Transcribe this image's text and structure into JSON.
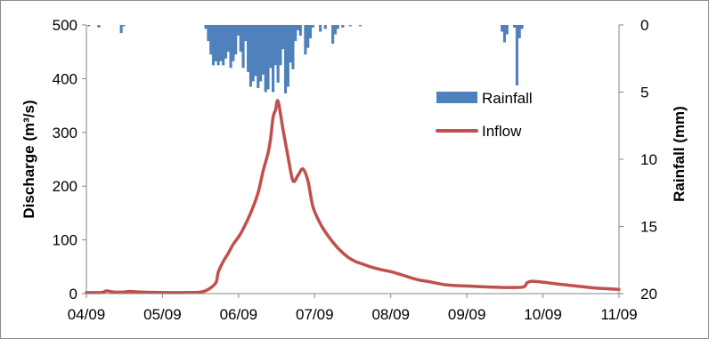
{
  "chart_data": {
    "type": "line",
    "title": "",
    "xlabel": "",
    "ylabel": "Discharge (m³/s)",
    "ylabel_right": "Rainfall (mm)",
    "ylim": [
      0,
      500
    ],
    "ylim_right": [
      0,
      20
    ],
    "right_axis_inverted": true,
    "grid": false,
    "legend_position": "right, inside plot",
    "x_ticks": [
      "04/09",
      "05/09",
      "06/09",
      "07/09",
      "08/09",
      "09/09",
      "10/09",
      "11/09"
    ],
    "y_ticks": [
      "0",
      "100",
      "200",
      "300",
      "400",
      "500"
    ],
    "y_ticks_right": [
      "0",
      "5",
      "10",
      "15",
      "20"
    ],
    "series": [
      {
        "name": "Rainfall",
        "kind": "bar",
        "axis": "right",
        "color": "#4f81bd",
        "x": [
          "04/10",
          "04/14",
          "04/23",
          "04/24",
          "05/27",
          "05/28",
          "05/29",
          "05/30",
          "05/31",
          "06/01",
          "06/02",
          "06/03",
          "06/04",
          "06/05",
          "06/06",
          "06/07",
          "06/08",
          "06/09",
          "06/10",
          "06/11",
          "06/12",
          "06/13",
          "06/14",
          "06/15",
          "06/16",
          "06/17",
          "06/18",
          "06/19",
          "06/20",
          "06/21",
          "06/22",
          "06/23",
          "06/24",
          "06/25",
          "06/26",
          "06/27",
          "06/28",
          "06/29",
          "06/30",
          "07/01",
          "07/02",
          "07/03",
          "07/04",
          "07/06",
          "07/07",
          "07/08",
          "07/09",
          "07/12",
          "07/14",
          "07/17",
          "07/18",
          "07/19",
          "07/21",
          "07/24",
          "07/28",
          "09/23",
          "09/24",
          "09/25",
          "09/28",
          "09/29",
          "09/30",
          "10/01"
        ],
        "values": [
          0.1,
          0.2,
          0.6,
          0.1,
          0.3,
          1.2,
          2.2,
          3.0,
          2.7,
          3.0,
          2.7,
          3.0,
          2.5,
          2.0,
          3.2,
          2.7,
          2.2,
          0.8,
          2.0,
          3.2,
          1.2,
          3.5,
          4.6,
          4.2,
          3.8,
          4.7,
          4.2,
          3.7,
          5.0,
          4.8,
          3.2,
          5.0,
          3.0,
          4.3,
          3.0,
          1.8,
          5.1,
          4.6,
          2.8,
          3.3,
          1.2,
          0.4,
          0.8,
          2.2,
          1.7,
          1.0,
          0.2,
          0.5,
          0.3,
          1.4,
          0.7,
          0.3,
          0.2,
          0.1,
          0.1,
          0.5,
          1.3,
          0.7,
          0.2,
          4.5,
          1.0,
          0.3
        ]
      },
      {
        "name": "Inflow",
        "kind": "line",
        "axis": "left",
        "color": "#c0504d",
        "x": [
          "04/09",
          "04/15",
          "04/17",
          "04/20",
          "04/24",
          "04/26",
          "05/01",
          "05/10",
          "05/20",
          "05/25",
          "05/28",
          "05/31",
          "06/01",
          "06/03",
          "06/05",
          "06/07",
          "06/10",
          "06/14",
          "06/17",
          "06/19",
          "06/21",
          "06/22",
          "06/23",
          "06/24",
          "06/25",
          "06/27",
          "06/29",
          "07/01",
          "07/03",
          "07/05",
          "07/07",
          "07/09",
          "07/12",
          "07/15",
          "07/19",
          "07/23",
          "07/26",
          "07/29",
          "08/01",
          "08/05",
          "08/10",
          "08/15",
          "08/20",
          "08/25",
          "09/01",
          "09/10",
          "09/20",
          "10/01",
          "10/03",
          "10/05",
          "10/10",
          "10/15",
          "10/25",
          "11/01",
          "11/09"
        ],
        "values": [
          2,
          2,
          5,
          3,
          3,
          4,
          3,
          2,
          2,
          3,
          8,
          20,
          40,
          60,
          75,
          92,
          112,
          150,
          188,
          228,
          262,
          288,
          328,
          342,
          358,
          305,
          255,
          210,
          220,
          232,
          210,
          162,
          130,
          108,
          85,
          68,
          60,
          55,
          50,
          45,
          40,
          33,
          26,
          22,
          16,
          14,
          12,
          12,
          20,
          23,
          21,
          18,
          13,
          10,
          8
        ]
      }
    ]
  }
}
